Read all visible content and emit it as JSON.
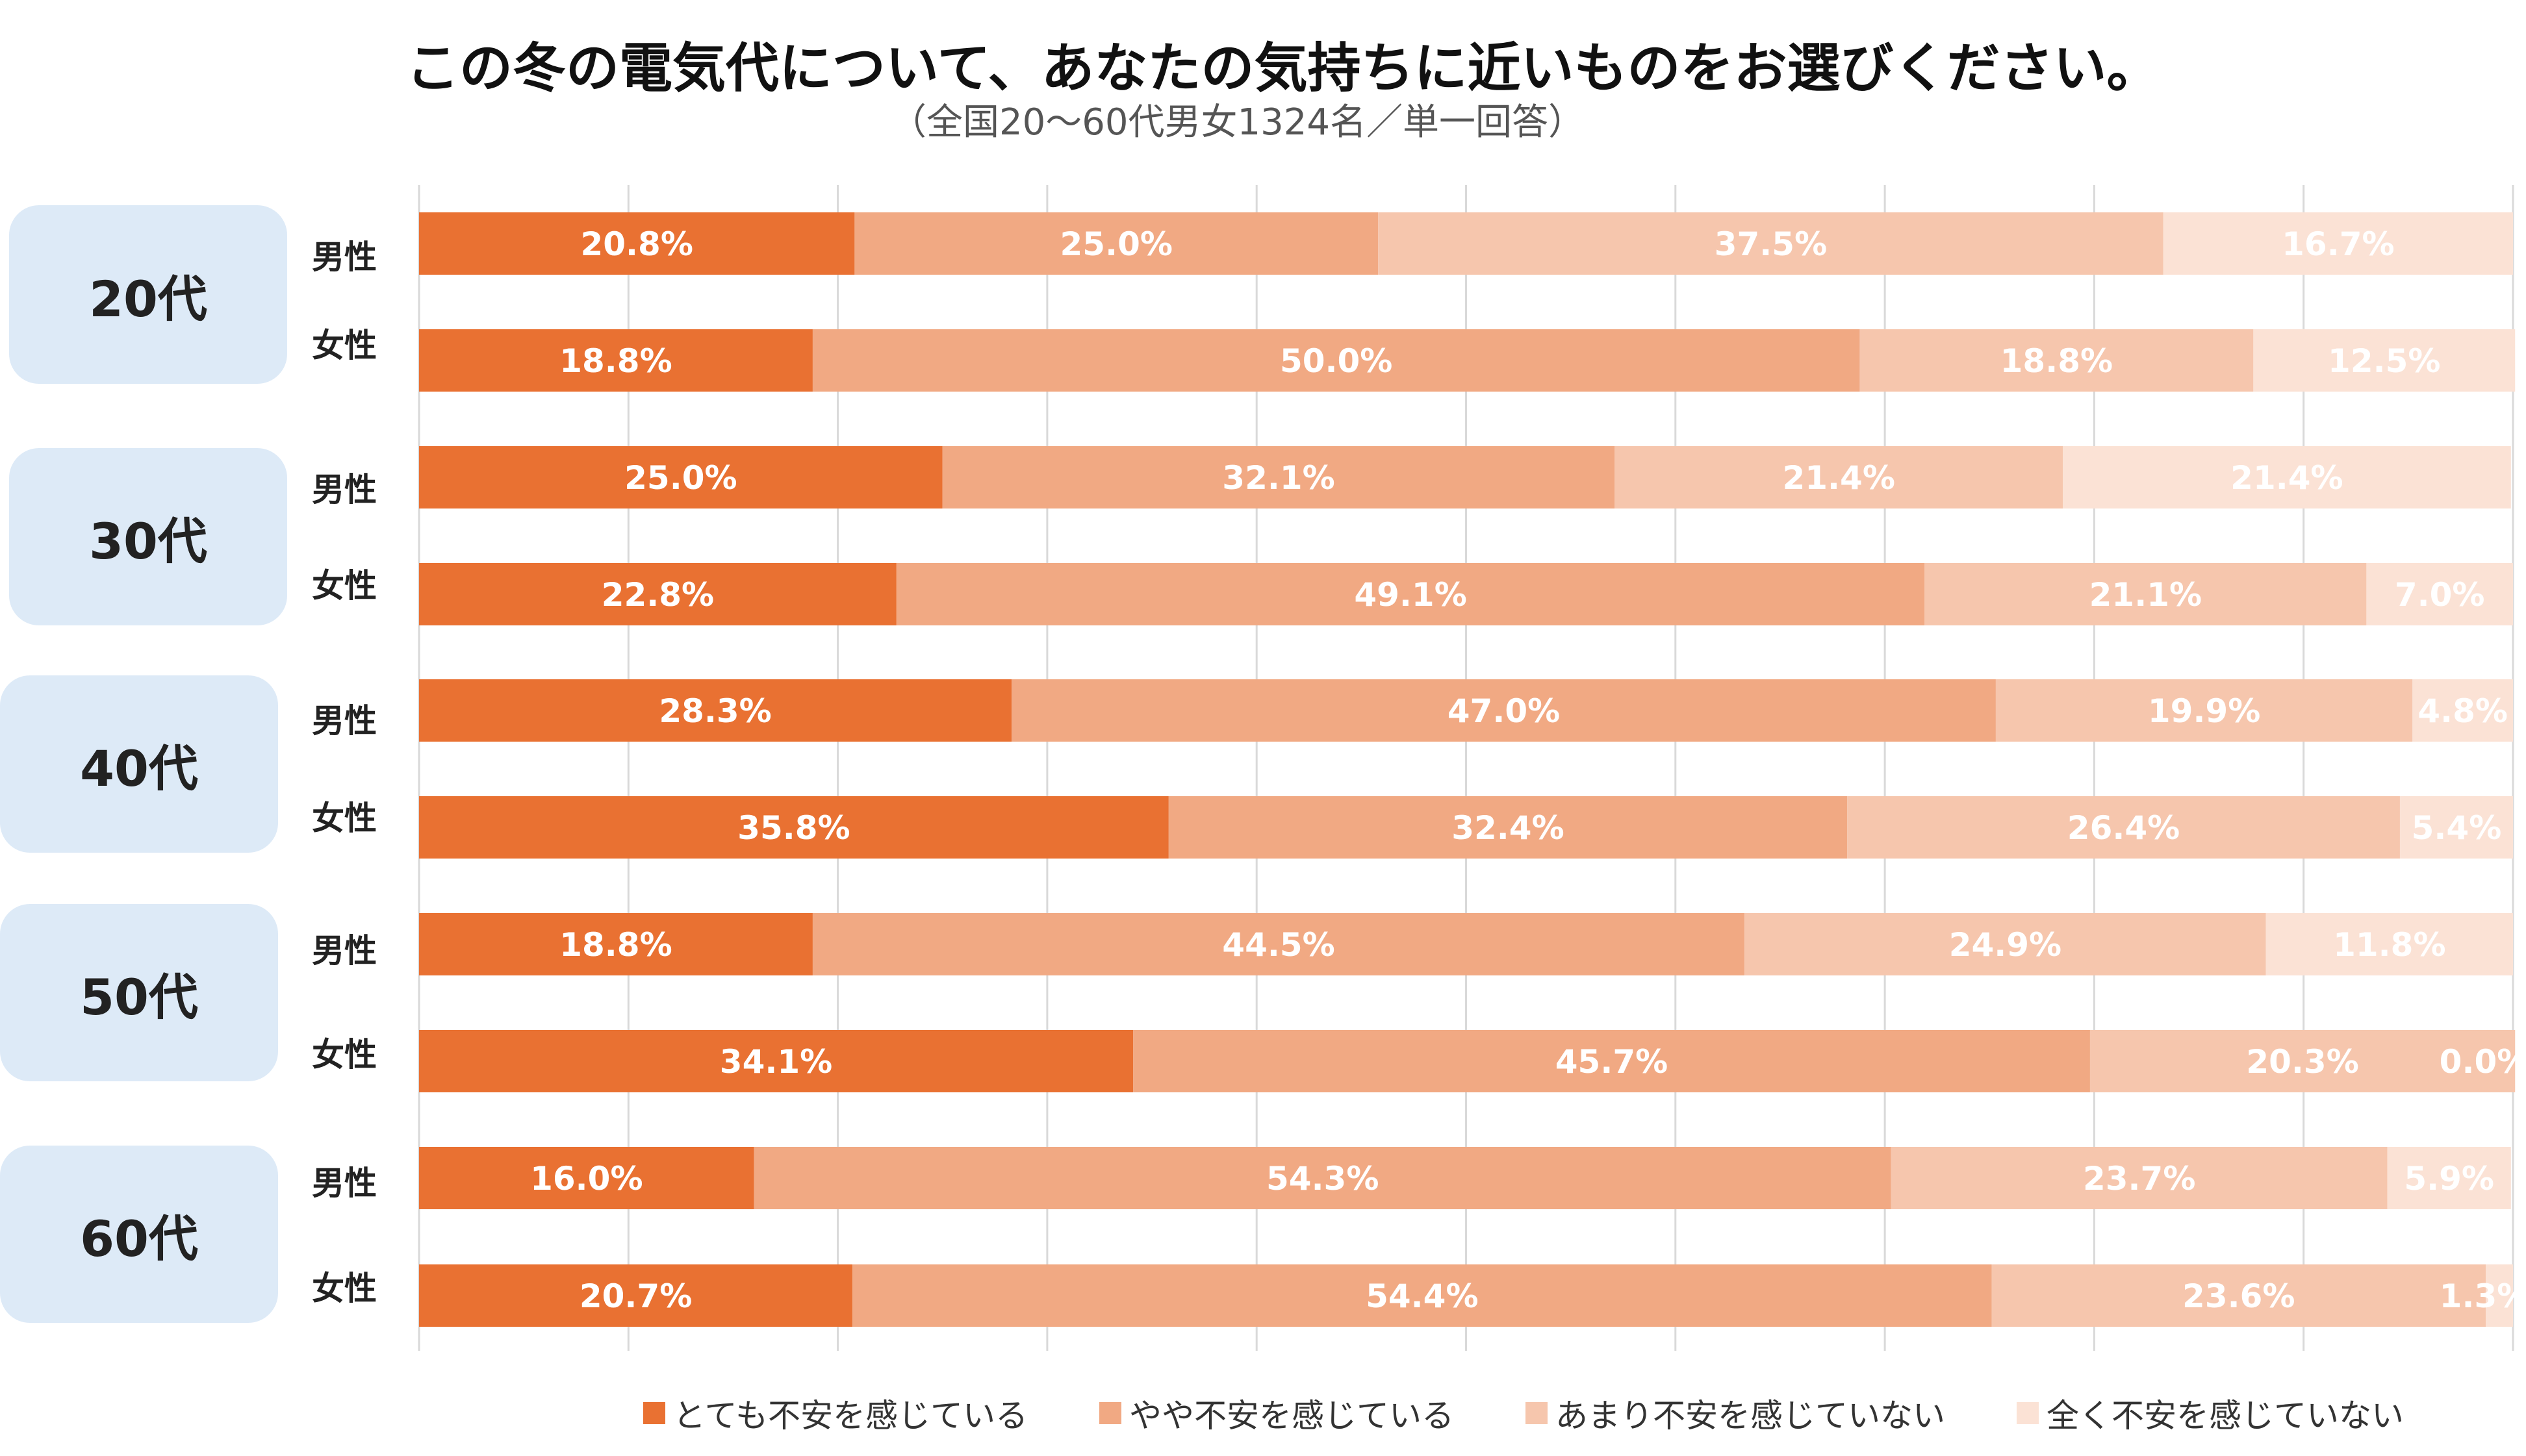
{
  "chart_data": {
    "type": "bar",
    "orientation": "horizontal",
    "stacked": true,
    "title": "この冬の電気代について、あなたの気持ちに近いものをお選びください。",
    "subtitle": "（全国20～60代男女1324名／単一回答）",
    "groups": [
      "20代",
      "30代",
      "40代",
      "50代",
      "60代"
    ],
    "genders": [
      "男性",
      "女性"
    ],
    "xlim": [
      0,
      100
    ],
    "series_names": [
      "とても不安を感じている",
      "やや不安を感じている",
      "あまり不安を感じていない",
      "全く不安を感じていない"
    ],
    "colors": [
      "#e97132",
      "#f1a983",
      "#f6c6ad",
      "#fbe2d5"
    ],
    "rows": [
      {
        "group": "20代",
        "gender": "男性",
        "values": [
          20.8,
          25.0,
          37.5,
          16.7
        ]
      },
      {
        "group": "20代",
        "gender": "女性",
        "values": [
          18.8,
          50.0,
          18.8,
          12.5
        ]
      },
      {
        "group": "30代",
        "gender": "男性",
        "values": [
          25.0,
          32.1,
          21.4,
          21.4
        ]
      },
      {
        "group": "30代",
        "gender": "女性",
        "values": [
          22.8,
          49.1,
          21.1,
          7.0
        ]
      },
      {
        "group": "40代",
        "gender": "男性",
        "values": [
          28.3,
          47.0,
          19.9,
          4.8
        ]
      },
      {
        "group": "40代",
        "gender": "女性",
        "values": [
          35.8,
          32.4,
          26.4,
          5.4
        ]
      },
      {
        "group": "50代",
        "gender": "男性",
        "values": [
          18.8,
          44.5,
          24.9,
          11.8
        ]
      },
      {
        "group": "50代",
        "gender": "女性",
        "values": [
          34.1,
          45.7,
          20.3,
          0.0
        ]
      },
      {
        "group": "60代",
        "gender": "男性",
        "values": [
          16.0,
          54.3,
          23.7,
          5.9
        ]
      },
      {
        "group": "60代",
        "gender": "女性",
        "values": [
          20.7,
          54.4,
          23.6,
          1.3
        ]
      }
    ],
    "grid": true,
    "legend_position": "bottom"
  }
}
